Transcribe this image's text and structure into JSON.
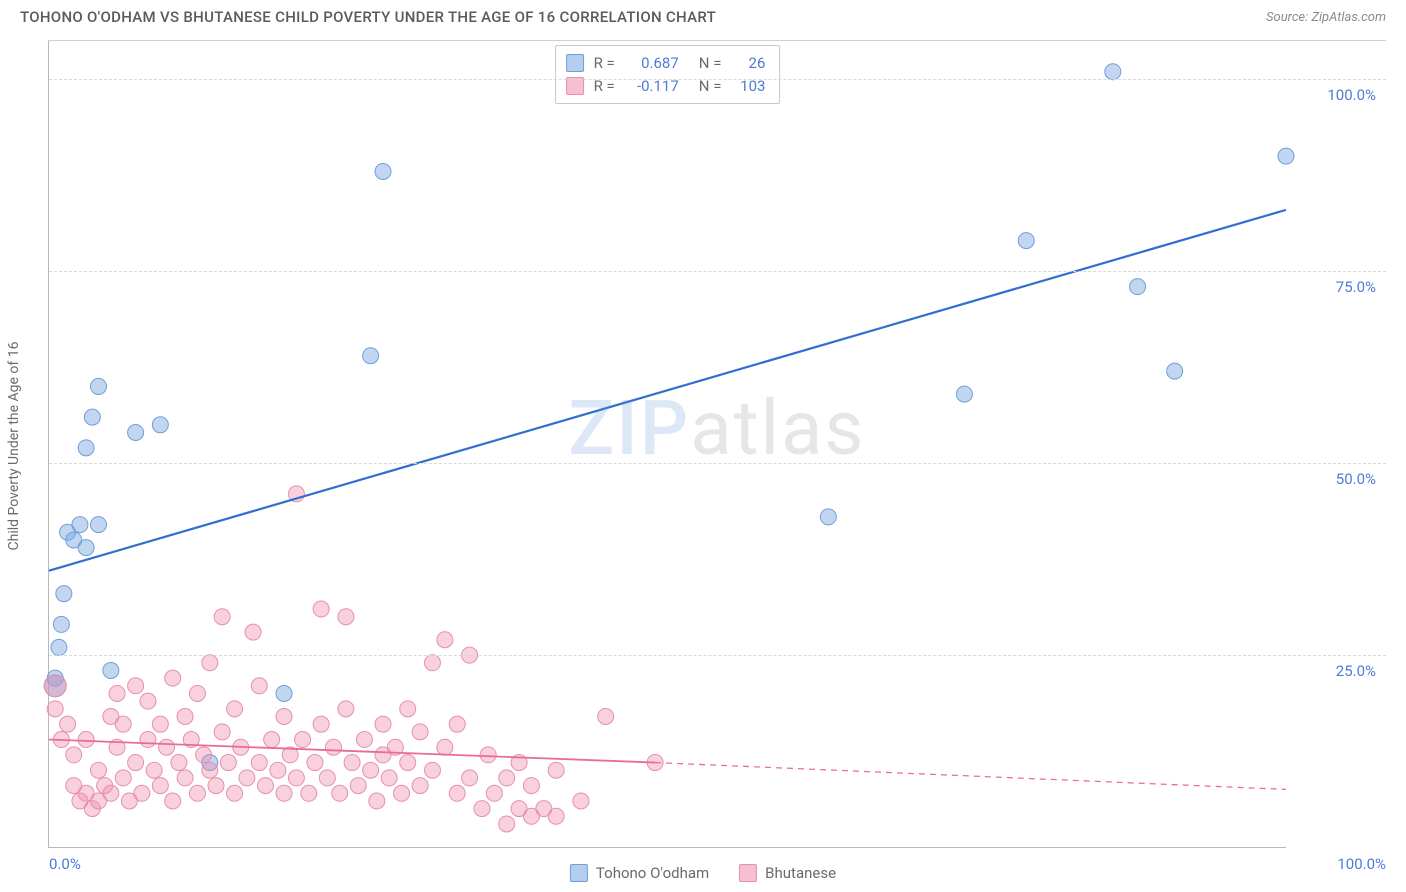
{
  "header": {
    "title": "TOHONO O'ODHAM VS BHUTANESE CHILD POVERTY UNDER THE AGE OF 16 CORRELATION CHART",
    "source_prefix": "Source: ",
    "source_name": "ZipAtlas.com"
  },
  "axes": {
    "y_label": "Child Poverty Under the Age of 16",
    "xlim": [
      0,
      100
    ],
    "ylim": [
      0,
      105
    ],
    "y_ticks": [
      {
        "v": 25,
        "label": "25.0%"
      },
      {
        "v": 50,
        "label": "50.0%"
      },
      {
        "v": 75,
        "label": "75.0%"
      },
      {
        "v": 100,
        "label": "100.0%"
      }
    ],
    "x_ticks": [
      {
        "v": 0,
        "label": "0.0%",
        "cls": "left-end"
      },
      {
        "v": 100,
        "label": "100.0%",
        "cls": "right-end"
      }
    ],
    "grid_color": "#d8d8d8",
    "axis_color": "#b8b8b8",
    "tick_label_color": "#4d7bd6"
  },
  "watermark": {
    "zip": "ZIP",
    "atlas": "atlas"
  },
  "series": [
    {
      "key": "tohono",
      "label": "Tohono O'odham",
      "color_fill": "rgba(120,165,225,0.45)",
      "color_stroke": "#6f9fd8",
      "line_color": "#2f6fd0",
      "line_width": 2.2,
      "marker_r": 8,
      "R": "0.687",
      "N": "26",
      "trend": {
        "x1": 0,
        "y1": 36,
        "x2": 100,
        "y2": 83,
        "dash": null
      },
      "points": [
        {
          "x": 0.5,
          "y": 22
        },
        {
          "x": 0.5,
          "y": 21,
          "r": 11
        },
        {
          "x": 0.8,
          "y": 26
        },
        {
          "x": 1,
          "y": 29
        },
        {
          "x": 1.2,
          "y": 33
        },
        {
          "x": 1.5,
          "y": 41
        },
        {
          "x": 2,
          "y": 40
        },
        {
          "x": 2.5,
          "y": 42
        },
        {
          "x": 3,
          "y": 39
        },
        {
          "x": 3,
          "y": 52
        },
        {
          "x": 3.5,
          "y": 56
        },
        {
          "x": 4,
          "y": 60
        },
        {
          "x": 4,
          "y": 42
        },
        {
          "x": 5,
          "y": 23
        },
        {
          "x": 7,
          "y": 54
        },
        {
          "x": 9,
          "y": 55
        },
        {
          "x": 13,
          "y": 11
        },
        {
          "x": 19,
          "y": 20
        },
        {
          "x": 26,
          "y": 64
        },
        {
          "x": 27,
          "y": 88
        },
        {
          "x": 63,
          "y": 43
        },
        {
          "x": 74,
          "y": 59
        },
        {
          "x": 79,
          "y": 79
        },
        {
          "x": 86,
          "y": 101
        },
        {
          "x": 88,
          "y": 73
        },
        {
          "x": 91,
          "y": 62
        },
        {
          "x": 100,
          "y": 90
        }
      ]
    },
    {
      "key": "bhutanese",
      "label": "Bhutanese",
      "color_fill": "rgba(240,140,170,0.40)",
      "color_stroke": "#e68fb0",
      "line_color": "#e86b9a",
      "line_width": 1.8,
      "marker_r": 8,
      "R": "-0.117",
      "N": "103",
      "trend": {
        "x1": 0,
        "y1": 14,
        "x2": 49,
        "y2": 11,
        "dash": null
      },
      "trend_ext": {
        "x1": 49,
        "y1": 11,
        "x2": 100,
        "y2": 7.5,
        "dash": "6 5"
      },
      "points": [
        {
          "x": 0.5,
          "y": 21,
          "r": 11
        },
        {
          "x": 0.5,
          "y": 18
        },
        {
          "x": 1,
          "y": 14
        },
        {
          "x": 1.5,
          "y": 16
        },
        {
          "x": 2,
          "y": 8
        },
        {
          "x": 2,
          "y": 12
        },
        {
          "x": 2.5,
          "y": 6
        },
        {
          "x": 3,
          "y": 7
        },
        {
          "x": 3,
          "y": 14
        },
        {
          "x": 3.5,
          "y": 5
        },
        {
          "x": 4,
          "y": 10
        },
        {
          "x": 4,
          "y": 6
        },
        {
          "x": 4.5,
          "y": 8
        },
        {
          "x": 5,
          "y": 7
        },
        {
          "x": 5,
          "y": 17
        },
        {
          "x": 5.5,
          "y": 20
        },
        {
          "x": 5.5,
          "y": 13
        },
        {
          "x": 6,
          "y": 9
        },
        {
          "x": 6,
          "y": 16
        },
        {
          "x": 6.5,
          "y": 6
        },
        {
          "x": 7,
          "y": 11
        },
        {
          "x": 7,
          "y": 21
        },
        {
          "x": 7.5,
          "y": 7
        },
        {
          "x": 8,
          "y": 14
        },
        {
          "x": 8,
          "y": 19
        },
        {
          "x": 8.5,
          "y": 10
        },
        {
          "x": 9,
          "y": 8
        },
        {
          "x": 9,
          "y": 16
        },
        {
          "x": 9.5,
          "y": 13
        },
        {
          "x": 10,
          "y": 6
        },
        {
          "x": 10,
          "y": 22
        },
        {
          "x": 10.5,
          "y": 11
        },
        {
          "x": 11,
          "y": 9
        },
        {
          "x": 11,
          "y": 17
        },
        {
          "x": 11.5,
          "y": 14
        },
        {
          "x": 12,
          "y": 7
        },
        {
          "x": 12,
          "y": 20
        },
        {
          "x": 12.5,
          "y": 12
        },
        {
          "x": 13,
          "y": 10
        },
        {
          "x": 13,
          "y": 24
        },
        {
          "x": 13.5,
          "y": 8
        },
        {
          "x": 14,
          "y": 15
        },
        {
          "x": 14,
          "y": 30
        },
        {
          "x": 14.5,
          "y": 11
        },
        {
          "x": 15,
          "y": 7
        },
        {
          "x": 15,
          "y": 18
        },
        {
          "x": 15.5,
          "y": 13
        },
        {
          "x": 16,
          "y": 9
        },
        {
          "x": 16.5,
          "y": 28
        },
        {
          "x": 17,
          "y": 11
        },
        {
          "x": 17,
          "y": 21
        },
        {
          "x": 17.5,
          "y": 8
        },
        {
          "x": 18,
          "y": 14
        },
        {
          "x": 18.5,
          "y": 10
        },
        {
          "x": 19,
          "y": 7
        },
        {
          "x": 19,
          "y": 17
        },
        {
          "x": 19.5,
          "y": 12
        },
        {
          "x": 20,
          "y": 9
        },
        {
          "x": 20,
          "y": 46
        },
        {
          "x": 20.5,
          "y": 14
        },
        {
          "x": 21,
          "y": 7
        },
        {
          "x": 21.5,
          "y": 11
        },
        {
          "x": 22,
          "y": 31
        },
        {
          "x": 22,
          "y": 16
        },
        {
          "x": 22.5,
          "y": 9
        },
        {
          "x": 23,
          "y": 13
        },
        {
          "x": 23.5,
          "y": 7
        },
        {
          "x": 24,
          "y": 18
        },
        {
          "x": 24,
          "y": 30
        },
        {
          "x": 24.5,
          "y": 11
        },
        {
          "x": 25,
          "y": 8
        },
        {
          "x": 25.5,
          "y": 14
        },
        {
          "x": 26,
          "y": 10
        },
        {
          "x": 26.5,
          "y": 6
        },
        {
          "x": 27,
          "y": 16
        },
        {
          "x": 27,
          "y": 12
        },
        {
          "x": 27.5,
          "y": 9
        },
        {
          "x": 28,
          "y": 13
        },
        {
          "x": 28.5,
          "y": 7
        },
        {
          "x": 29,
          "y": 11
        },
        {
          "x": 29,
          "y": 18
        },
        {
          "x": 30,
          "y": 8
        },
        {
          "x": 30,
          "y": 15
        },
        {
          "x": 31,
          "y": 24
        },
        {
          "x": 31,
          "y": 10
        },
        {
          "x": 32,
          "y": 27
        },
        {
          "x": 32,
          "y": 13
        },
        {
          "x": 33,
          "y": 7
        },
        {
          "x": 33,
          "y": 16
        },
        {
          "x": 34,
          "y": 25
        },
        {
          "x": 34,
          "y": 9
        },
        {
          "x": 35,
          "y": 5
        },
        {
          "x": 35.5,
          "y": 12
        },
        {
          "x": 36,
          "y": 7
        },
        {
          "x": 37,
          "y": 3
        },
        {
          "x": 37,
          "y": 9
        },
        {
          "x": 38,
          "y": 5
        },
        {
          "x": 38,
          "y": 11
        },
        {
          "x": 39,
          "y": 4
        },
        {
          "x": 39,
          "y": 8
        },
        {
          "x": 40,
          "y": 5
        },
        {
          "x": 41,
          "y": 10
        },
        {
          "x": 41,
          "y": 4
        },
        {
          "x": 43,
          "y": 6
        },
        {
          "x": 45,
          "y": 17
        },
        {
          "x": 49,
          "y": 11
        }
      ]
    }
  ],
  "correlation_legend": {
    "R_label": "R =",
    "N_label": "N ="
  },
  "bottom_legend": [
    {
      "swatch_fill": "rgba(120,165,225,0.55)",
      "swatch_stroke": "#6f9fd8",
      "bind": "series.0.label"
    },
    {
      "swatch_fill": "rgba(240,140,170,0.55)",
      "swatch_stroke": "#e68fb0",
      "bind": "series.1.label"
    }
  ]
}
